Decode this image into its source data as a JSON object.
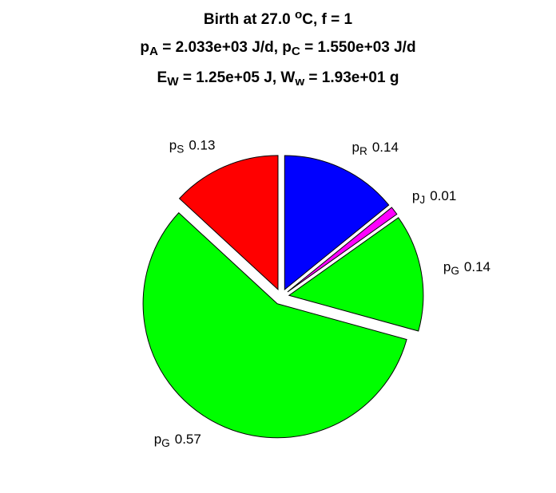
{
  "chart_data": {
    "type": "pie",
    "title": [
      [
        "Birth at 27.0 ",
        {
          "sup": "o"
        },
        "C, f = 1"
      ],
      [
        "p",
        {
          "sub": "A"
        },
        " = 2.033e+03 J/d, p",
        {
          "sub": "C"
        },
        " = 1.550e+03 J/d"
      ],
      [
        "E",
        {
          "sub": "W"
        },
        " = 1.25e+05 J, W",
        {
          "sub": "w"
        },
        " = 1.93e+01 g"
      ]
    ],
    "categories": [
      [
        "p",
        {
          "sub": "R"
        }
      ],
      [
        "p",
        {
          "sub": "J"
        }
      ],
      [
        "p",
        {
          "sub": "G"
        }
      ],
      [
        "p",
        {
          "sub": "G"
        }
      ],
      [
        "p",
        {
          "sub": "S"
        }
      ]
    ],
    "values": [
      0.14,
      0.01,
      0.14,
      0.57,
      0.13
    ],
    "colors": [
      "#0000ff",
      "#ff00ff",
      "#00ff00",
      "#00ff00",
      "#ff0000"
    ],
    "explode": true
  }
}
